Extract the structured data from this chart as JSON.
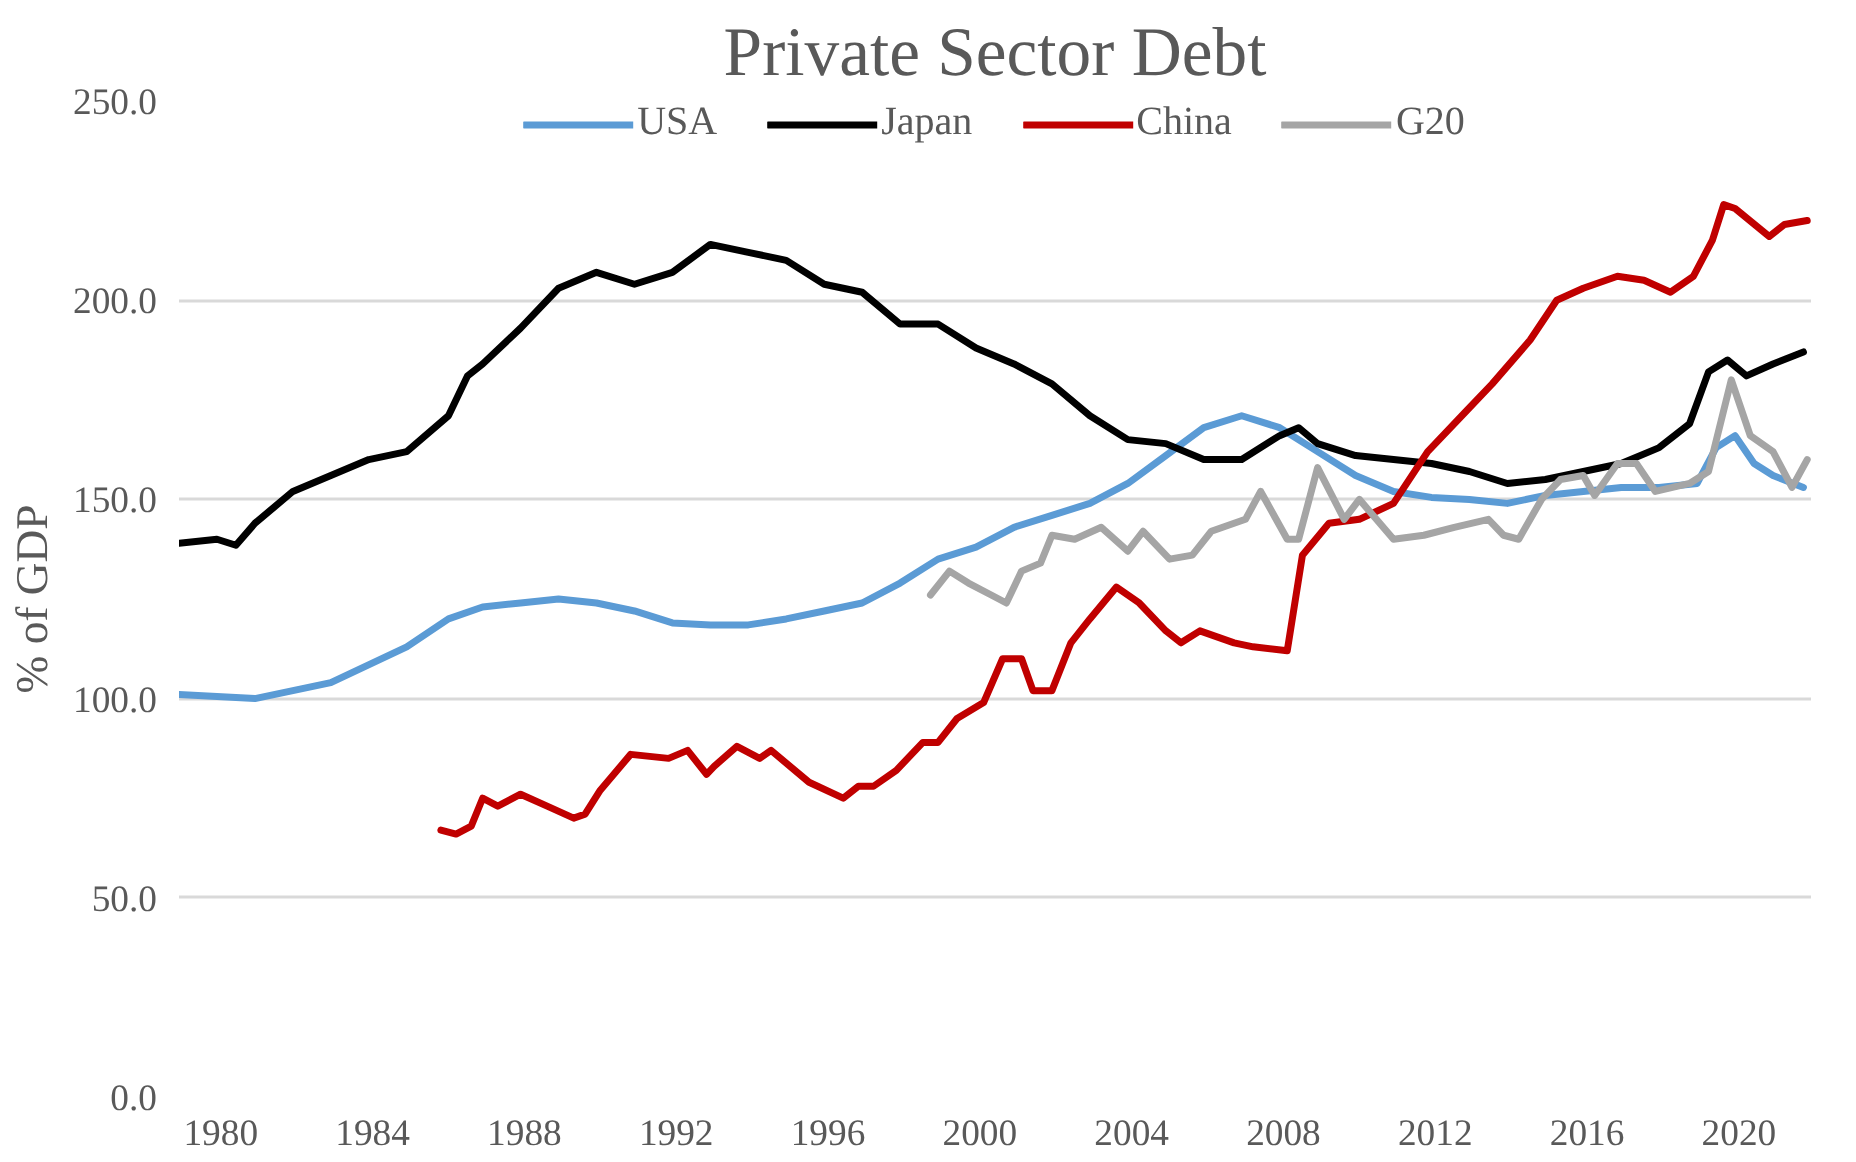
{
  "chart_data": {
    "type": "line",
    "title": "Private Sector Debt",
    "ylabel": "% of GDP",
    "xlim": [
      1978.9,
      2021.9
    ],
    "xticks": [
      1980,
      1984,
      1988,
      1992,
      1996,
      2000,
      2004,
      2008,
      2012,
      2016,
      2020
    ],
    "ylim": [
      0,
      250
    ],
    "yticks": [
      {
        "value": 0,
        "label": "0.0"
      },
      {
        "value": 50,
        "label": "50.0"
      },
      {
        "value": 100,
        "label": "100.0"
      },
      {
        "value": 150,
        "label": "150.0"
      },
      {
        "value": 200,
        "label": "200.0"
      },
      {
        "value": 250,
        "label": "250.0"
      }
    ],
    "grid": "y",
    "legend": "top",
    "line_style": "solid",
    "series": [
      {
        "name": "USA",
        "color": "#5b9bd5",
        "x": [
          1978.9,
          1980.9,
          1982.9,
          1984.9,
          1986.0,
          1986.9,
          1987.9,
          1988.9,
          1989.9,
          1990.9,
          1991.9,
          1992.9,
          1993.9,
          1994.9,
          1995.9,
          1996.9,
          1997.9,
          1998.9,
          1999.9,
          2000.9,
          2001.9,
          2002.9,
          2003.9,
          2004.9,
          2005.9,
          2006.9,
          2007.9,
          2008.9,
          2009.9,
          2010.9,
          2011.9,
          2012.9,
          2013.9,
          2014.9,
          2015.9,
          2016.9,
          2017.9,
          2018.9,
          2019.4,
          2019.9,
          2020.4,
          2020.9,
          2021.7
        ],
        "values": [
          101,
          100,
          104,
          113,
          120,
          123,
          124,
          125,
          124,
          122,
          119,
          118.5,
          118.5,
          120,
          122,
          124,
          129,
          135,
          138,
          143,
          146,
          149,
          154,
          161,
          168,
          171,
          168,
          162,
          156,
          152,
          150.5,
          150,
          149,
          151,
          152,
          153,
          153,
          154,
          163,
          166,
          159,
          156,
          153
        ]
      },
      {
        "name": "Japan",
        "color": "#000000",
        "x": [
          1978.9,
          1979.9,
          1980.4,
          1980.9,
          1981.9,
          1982.9,
          1983.9,
          1984.9,
          1986.0,
          1986.5,
          1986.9,
          1987.9,
          1988.9,
          1989.9,
          1990.9,
          1991.9,
          1992.9,
          1993.9,
          1994.9,
          1995.9,
          1996.9,
          1997.9,
          1998.9,
          1999.9,
          2000.9,
          2001.9,
          2002.9,
          2003.9,
          2004.9,
          2005.9,
          2006.9,
          2007.9,
          2008.4,
          2008.9,
          2009.9,
          2010.9,
          2011.9,
          2012.9,
          2013.9,
          2014.9,
          2015.9,
          2016.9,
          2017.9,
          2018.7,
          2019.2,
          2019.7,
          2020.2,
          2020.9,
          2021.7
        ],
        "values": [
          139,
          140,
          138.5,
          144,
          152,
          156,
          160,
          162,
          171,
          181,
          184,
          193,
          203,
          207,
          204,
          207,
          214,
          212,
          210,
          204,
          202,
          194,
          194,
          188,
          184,
          179,
          171,
          165,
          164,
          160,
          160,
          166,
          168,
          164,
          161,
          160,
          159,
          157,
          154,
          155,
          157,
          159,
          163,
          169,
          182,
          185,
          181,
          184,
          187
        ]
      },
      {
        "name": "China",
        "color": "#c00000",
        "x": [
          1985.8,
          1986.2,
          1986.6,
          1986.9,
          1987.3,
          1987.9,
          1988.6,
          1989.3,
          1989.6,
          1990.0,
          1990.8,
          1991.8,
          1992.3,
          1992.8,
          1993.0,
          1993.6,
          1994.2,
          1994.5,
          1995.5,
          1996.4,
          1996.8,
          1997.2,
          1997.8,
          1998.5,
          1998.9,
          1999.4,
          2000.1,
          2000.6,
          2001.1,
          2001.4,
          2001.9,
          2002.4,
          2002.9,
          2003.6,
          2004.2,
          2004.9,
          2005.3,
          2005.8,
          2006.7,
          2007.2,
          2008.1,
          2008.5,
          2009.2,
          2010.0,
          2010.9,
          2011.8,
          2012.8,
          2013.5,
          2014.5,
          2015.2,
          2015.9,
          2016.8,
          2017.5,
          2018.2,
          2018.8,
          2019.3,
          2019.6,
          2019.9,
          2020.8,
          2021.2,
          2021.8
        ],
        "values": [
          67,
          66,
          68,
          75,
          73,
          76,
          73,
          70,
          71,
          77,
          86,
          85,
          87,
          81,
          83,
          88,
          85,
          87,
          79,
          75,
          78,
          78,
          82,
          89,
          89,
          95,
          99,
          110,
          110,
          102,
          102,
          114,
          120,
          128,
          124,
          117,
          114,
          117,
          114,
          113,
          112,
          136,
          144,
          145,
          149,
          162,
          172,
          179,
          190,
          200,
          203,
          206,
          205,
          202,
          206,
          215,
          224,
          223,
          216,
          219,
          220
        ]
      },
      {
        "name": "G20",
        "color": "#a5a5a5",
        "x": [
          1998.7,
          1999.2,
          1999.7,
          2000.3,
          2000.7,
          2001.1,
          2001.6,
          2001.9,
          2002.5,
          2003.2,
          2003.9,
          2004.3,
          2005.0,
          2005.6,
          2006.1,
          2007.0,
          2007.4,
          2008.1,
          2008.4,
          2008.9,
          2009.6,
          2010.0,
          2010.9,
          2011.7,
          2012.5,
          2013.4,
          2013.8,
          2014.2,
          2014.8,
          2015.3,
          2015.9,
          2016.2,
          2016.8,
          2017.3,
          2017.8,
          2018.7,
          2019.2,
          2019.8,
          2020.3,
          2020.9,
          2021.4,
          2021.8
        ],
        "values": [
          126,
          132,
          129,
          126,
          124,
          132,
          134,
          141,
          140,
          143,
          137,
          142,
          135,
          136,
          142,
          145,
          152,
          140,
          140,
          158,
          145,
          150,
          140,
          141,
          143,
          145,
          141,
          140,
          150,
          155,
          156,
          151,
          159,
          159,
          152,
          154,
          157,
          180,
          166,
          162,
          153,
          160
        ]
      }
    ]
  }
}
